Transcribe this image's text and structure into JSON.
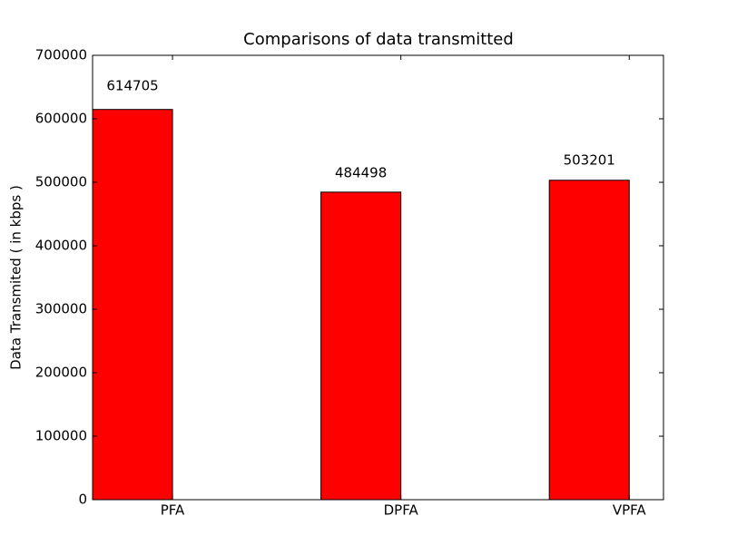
{
  "chart_data": {
    "type": "bar",
    "title": "Comparisons of data transmitted",
    "y_label": "Data Transmited ( in kbps )",
    "categories": [
      "PFA",
      "DPFA",
      "VPFA"
    ],
    "values": [
      614705,
      484498,
      503201
    ],
    "color": "#ff0000",
    "ylim": [
      0,
      700000
    ],
    "yticks": [
      0,
      100000,
      200000,
      300000,
      400000,
      500000,
      600000,
      700000
    ],
    "grid": false
  }
}
